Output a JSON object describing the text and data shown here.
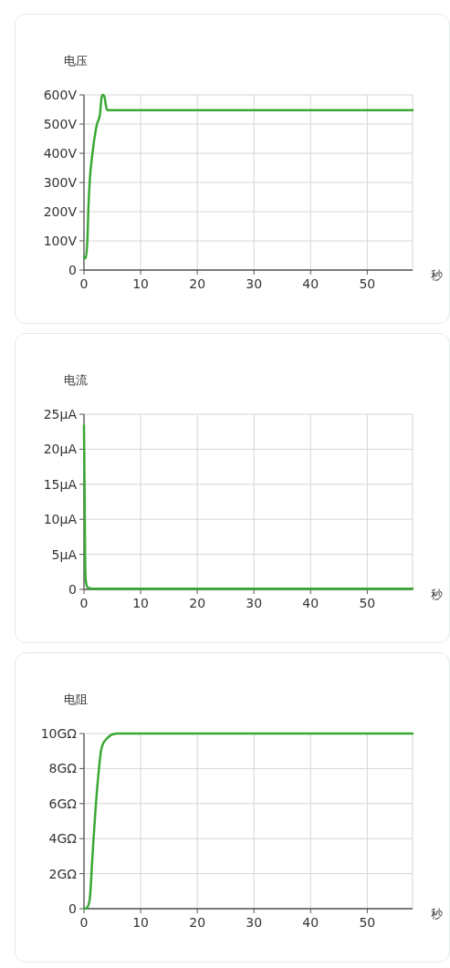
{
  "chart_data": [
    {
      "type": "line",
      "ylabel": "电压",
      "xlabel": "秒",
      "xlim": [
        0,
        58
      ],
      "xticks": [
        0,
        10,
        20,
        30,
        40,
        50
      ],
      "ylim": [
        0,
        600
      ],
      "yticks": [
        {
          "value": 0,
          "label": "0"
        },
        {
          "value": 100,
          "label": "100V"
        },
        {
          "value": 200,
          "label": "200V"
        },
        {
          "value": 300,
          "label": "300V"
        },
        {
          "value": 400,
          "label": "400V"
        },
        {
          "value": 500,
          "label": "500V"
        },
        {
          "value": 600,
          "label": "600V"
        }
      ],
      "grid": true,
      "series": [
        {
          "color": "#3aa835",
          "x": [
            0,
            0.3,
            0.6,
            0.8,
            1,
            1.5,
            2,
            2.3,
            2.8,
            3.1,
            3.3,
            3.6,
            3.9,
            4.1,
            5,
            58
          ],
          "values": [
            45,
            40,
            100,
            220,
            300,
            400,
            470,
            500,
            530,
            590,
            600,
            595,
            560,
            548,
            548,
            548
          ]
        }
      ]
    },
    {
      "type": "line",
      "ylabel": "电流",
      "xlabel": "秒",
      "xlim": [
        0,
        58
      ],
      "xticks": [
        0,
        10,
        20,
        30,
        40,
        50
      ],
      "ylim": [
        0,
        25
      ],
      "yticks": [
        {
          "value": 0,
          "label": "0"
        },
        {
          "value": 5,
          "label": "5μA"
        },
        {
          "value": 10,
          "label": "10μA"
        },
        {
          "value": 15,
          "label": "15μA"
        },
        {
          "value": 20,
          "label": "20μA"
        },
        {
          "value": 25,
          "label": "25μA"
        }
      ],
      "grid": true,
      "series": [
        {
          "color": "#3aa835",
          "x": [
            0,
            0.1,
            0.2,
            0.3,
            0.5,
            0.8,
            1.5,
            58
          ],
          "values": [
            23.4,
            15,
            5,
            1.5,
            0.5,
            0.2,
            0.1,
            0.1
          ]
        }
      ]
    },
    {
      "type": "line",
      "ylabel": "电阻",
      "xlabel": "秒",
      "xlim": [
        0,
        58
      ],
      "xticks": [
        0,
        10,
        20,
        30,
        40,
        50
      ],
      "ylim": [
        0,
        10
      ],
      "yticks": [
        {
          "value": 0,
          "label": "0"
        },
        {
          "value": 2,
          "label": "2GΩ"
        },
        {
          "value": 4,
          "label": "4GΩ"
        },
        {
          "value": 6,
          "label": "6GΩ"
        },
        {
          "value": 8,
          "label": "8GΩ"
        },
        {
          "value": 10,
          "label": "10GΩ"
        }
      ],
      "grid": true,
      "series": [
        {
          "color": "#3aa835",
          "x": [
            0,
            0.5,
            1,
            1.5,
            2,
            2.5,
            3,
            3.5,
            4,
            5,
            6,
            58
          ],
          "values": [
            0,
            0.05,
            0.5,
            3,
            5.5,
            7.5,
            9,
            9.5,
            9.7,
            9.95,
            10,
            10
          ]
        }
      ]
    }
  ]
}
